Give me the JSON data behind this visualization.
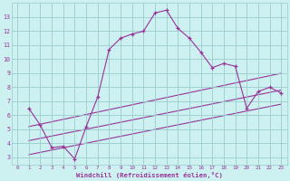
{
  "xlabel": "Windchill (Refroidissement éolien,°C)",
  "bg_color": "#cdf0f0",
  "grid_color": "#99cccc",
  "line_color": "#993399",
  "xlim": [
    -0.5,
    23.5
  ],
  "ylim": [
    2.5,
    14.0
  ],
  "xticks": [
    0,
    1,
    2,
    3,
    4,
    5,
    6,
    7,
    8,
    9,
    10,
    11,
    12,
    13,
    14,
    15,
    16,
    17,
    18,
    19,
    20,
    21,
    22,
    23
  ],
  "yticks": [
    3,
    4,
    5,
    6,
    7,
    8,
    9,
    10,
    11,
    12,
    13
  ],
  "main_x": [
    1,
    2,
    3,
    4,
    5,
    6,
    7,
    8,
    9,
    10,
    11,
    12,
    13,
    14,
    15,
    16,
    17,
    18,
    19,
    20,
    21,
    22,
    23
  ],
  "main_y": [
    6.5,
    5.3,
    3.7,
    3.8,
    2.9,
    5.2,
    7.3,
    10.7,
    11.5,
    11.8,
    12.0,
    13.3,
    13.5,
    12.2,
    11.5,
    10.5,
    9.4,
    9.7,
    9.5,
    6.5,
    7.7,
    8.0,
    7.6
  ],
  "trend1_x": [
    1,
    23
  ],
  "trend1_y": [
    4.2,
    7.8
  ],
  "trend2_x": [
    1,
    23
  ],
  "trend2_y": [
    3.2,
    6.8
  ],
  "trend3_x": [
    1,
    23
  ],
  "trend3_y": [
    5.2,
    9.0
  ]
}
